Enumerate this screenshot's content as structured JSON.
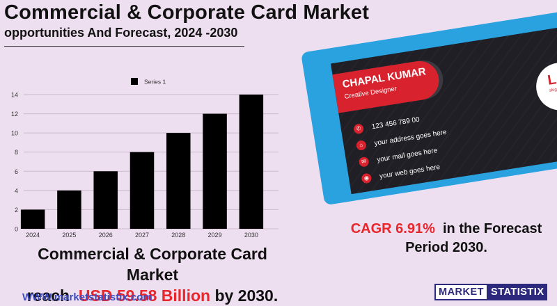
{
  "header": {
    "title": "Commercial & Corporate Card Market",
    "subtitle": "opportunities And Forecast, 2024 -2030"
  },
  "chart_data": {
    "type": "bar",
    "categories": [
      "2024",
      "2025",
      "2026",
      "2027",
      "2028",
      "2029",
      "2030"
    ],
    "series": [
      {
        "name": "Series 1",
        "values": [
          2,
          4,
          6,
          8,
          10,
          12,
          14
        ]
      }
    ],
    "ylim": [
      0,
      14
    ],
    "yticks": [
      0,
      2,
      4,
      6,
      8,
      10,
      12,
      14
    ],
    "grid": true,
    "legend": "top",
    "bar_color": "#000000"
  },
  "headline": {
    "line1": "Commercial & Corporate Card Market",
    "pre": "reach",
    "highlight": "USD  59.58 Billion",
    "post": "by 2030."
  },
  "cagr": {
    "highlight": "CAGR 6.91%",
    "text1": "in the  Forecast",
    "text2": "Period  2030."
  },
  "website": "WWW.marketstatistix.com",
  "brand": {
    "part1": "MARKET",
    "part2": "STATISTIX"
  },
  "business_card": {
    "name": "CHAPAL KUMAR",
    "role": "Creative Designer",
    "phone": "123 456 789 00",
    "address": "your address goes here",
    "mail": "your mail goes here",
    "web": "your web goes here",
    "logo_text": "LOGO",
    "logo_slogan": "slogan goes here",
    "icons": [
      "phone-icon",
      "home-icon",
      "mail-icon",
      "globe-icon"
    ]
  },
  "colors": {
    "accent_red": "#e8262b",
    "card_blue": "#2aa2e0",
    "brand_navy": "#2d2a7d"
  }
}
